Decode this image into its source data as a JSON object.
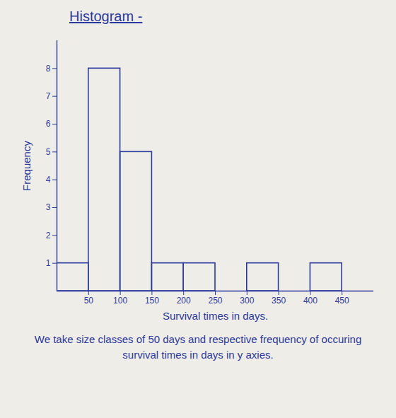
{
  "chart_data": {
    "type": "histogram",
    "title": "Histogram -",
    "bins": [
      0,
      50,
      100,
      150,
      200,
      250,
      300,
      350,
      400,
      450
    ],
    "values": [
      1,
      8,
      5,
      1,
      1,
      0,
      1,
      0,
      1
    ],
    "color": "#2b3a9e",
    "x_label": "Survival times in days.",
    "y_label": "Frequency",
    "xlim": [
      0,
      500
    ],
    "xticks": [
      50,
      100,
      150,
      200,
      250,
      300,
      350,
      400,
      450
    ],
    "ylim": [
      0,
      9
    ],
    "yticks": [
      1,
      2,
      3,
      4,
      5,
      6,
      7,
      8
    ],
    "caption": "We take size classes of 50 days and respective frequency of occuring survival times in days in y axies."
  }
}
